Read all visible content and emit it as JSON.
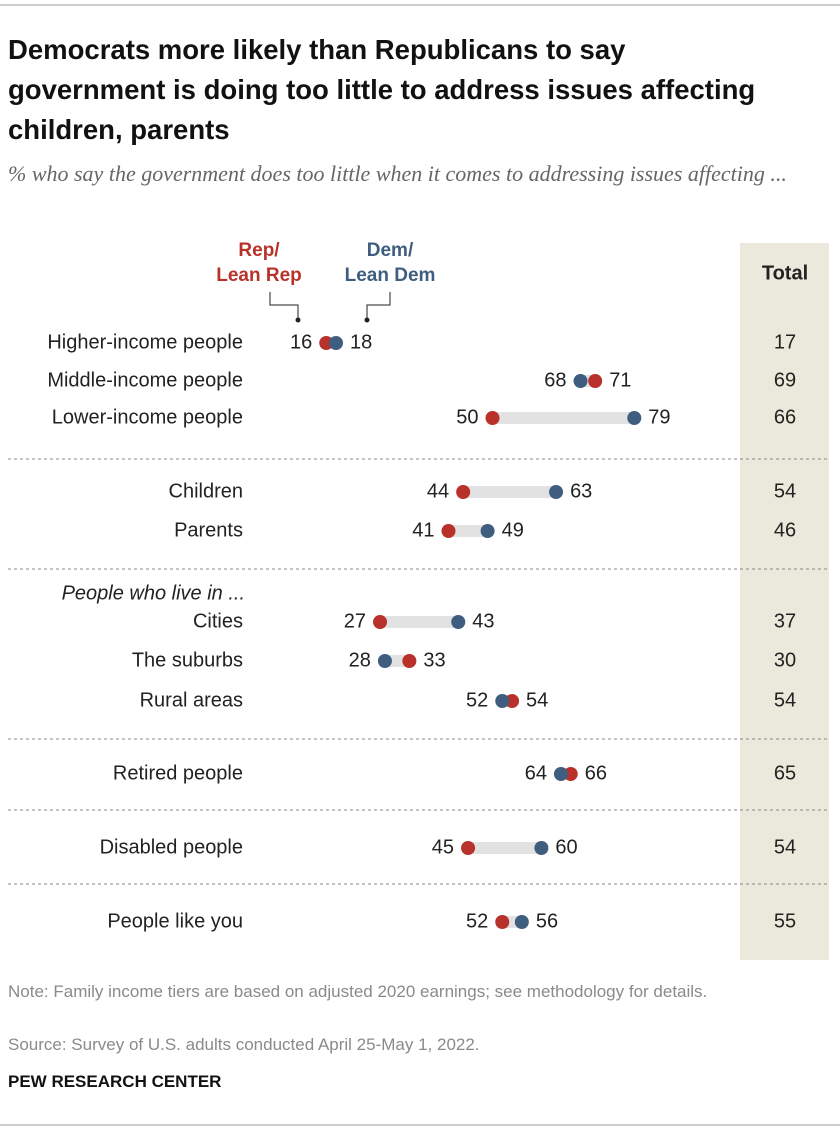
{
  "chart_data": {
    "type": "dot",
    "title": "Democrats more likely than Republicans to say government is doing too little to address issues affecting children, parents",
    "subtitle": "% who say the government does too little when it comes to addressing issues affecting ...",
    "categories": [
      "Higher-income people",
      "Middle-income people",
      "Lower-income people",
      "Children",
      "Parents",
      "Cities",
      "The suburbs",
      "Rural areas",
      "Retired people",
      "Disabled people",
      "People like you"
    ],
    "group_label": "People who live in ...",
    "series": [
      {
        "name": "Rep/\nLean Rep",
        "color": "#b8312b",
        "values": [
          16,
          71,
          50,
          44,
          41,
          27,
          33,
          54,
          66,
          45,
          52
        ]
      },
      {
        "name": "Dem/\nLean Dem",
        "color": "#3e5d7f",
        "values": [
          18,
          68,
          79,
          63,
          49,
          43,
          28,
          52,
          64,
          60,
          56
        ]
      }
    ],
    "total": {
      "label": "Total",
      "values": [
        17,
        69,
        66,
        54,
        46,
        37,
        30,
        54,
        65,
        54,
        55
      ]
    },
    "xlim": [
      0,
      100
    ],
    "note": "Note: Family income tiers are based on adjusted 2020 earnings; see methodology for details.",
    "source": "Source: Survey of U.S. adults conducted April 25-May 1, 2022.",
    "credit": "PEW RESEARCH CENTER"
  }
}
